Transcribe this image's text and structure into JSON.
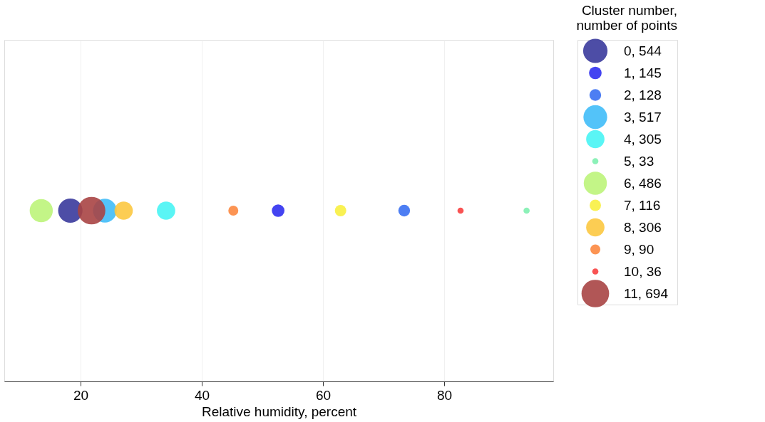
{
  "chart_data": {
    "type": "bubble",
    "orientation": "horizontal",
    "categories": [
      null
    ],
    "xlabel": "Relative humidity, percent",
    "legend_title": "Cluster number,\nnumber of points",
    "legend": "right",
    "grid": "x",
    "xlim": [
      7.4,
      98
    ],
    "xticks": [
      20,
      40,
      60,
      80
    ],
    "series": [
      {
        "name": "0, 544",
        "color": "#3a3a9c",
        "values": [
          18.3
        ],
        "sizes": [
          0.78
        ]
      },
      {
        "name": "1, 145",
        "color": "#3030f0",
        "values": [
          52.6
        ],
        "sizes": [
          0.21
        ]
      },
      {
        "name": "2, 128",
        "color": "#3a70f2",
        "values": [
          73.4
        ],
        "sizes": [
          0.18
        ]
      },
      {
        "name": "3, 517",
        "color": "#40bdf8",
        "values": [
          24.0
        ],
        "sizes": [
          0.74
        ]
      },
      {
        "name": "4, 305",
        "color": "#48f4f4",
        "values": [
          34.1
        ],
        "sizes": [
          0.44
        ]
      },
      {
        "name": "5, 33",
        "color": "#80f0b0",
        "values": [
          93.6
        ],
        "sizes": [
          0.05
        ]
      },
      {
        "name": "6, 486",
        "color": "#bcf47a",
        "values": [
          13.5
        ],
        "sizes": [
          0.7
        ]
      },
      {
        "name": "7, 116",
        "color": "#f8f040",
        "values": [
          62.9
        ],
        "sizes": [
          0.17
        ]
      },
      {
        "name": "8, 306",
        "color": "#fcc840",
        "values": [
          27.1
        ],
        "sizes": [
          0.44
        ]
      },
      {
        "name": "9, 90",
        "color": "#fc8840",
        "values": [
          45.2
        ],
        "sizes": [
          0.13
        ]
      },
      {
        "name": "10, 36",
        "color": "#f84040",
        "values": [
          82.7
        ],
        "sizes": [
          0.05
        ]
      },
      {
        "name": "11, 694",
        "color": "#a84444",
        "values": [
          21.8
        ],
        "sizes": [
          1
        ]
      }
    ]
  }
}
